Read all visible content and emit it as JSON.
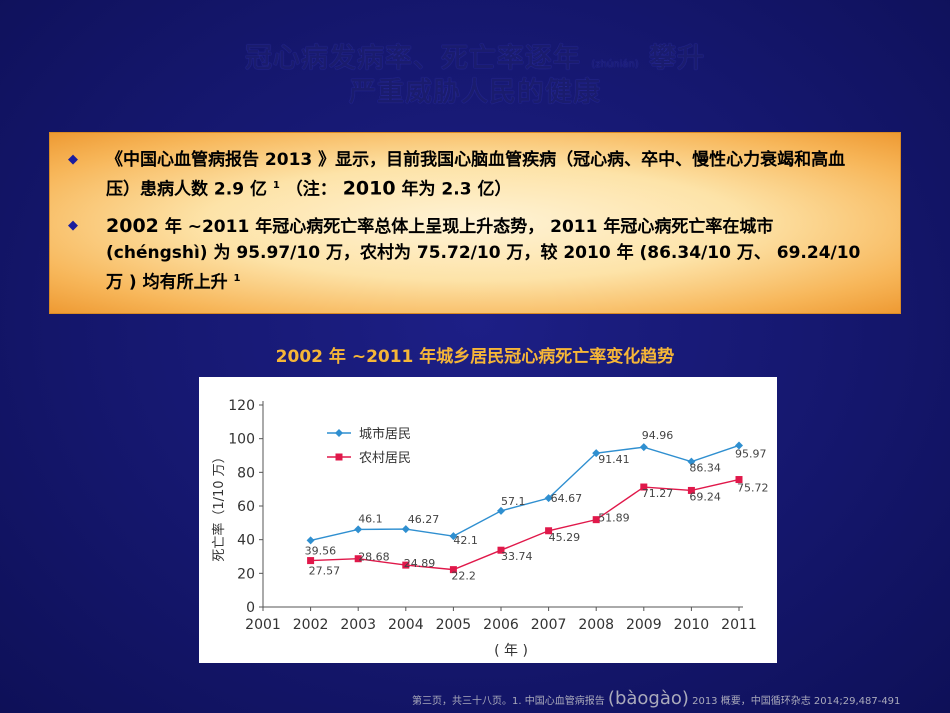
{
  "slide": {
    "title_line1_a": "冠心病发病率、死亡率逐年",
    "title_line1_pinyin": "(zhúnián)",
    "title_line1_b": "攀升",
    "title_line2": "严重威胁人民的健康",
    "bullets": [
      {
        "part1": "《中国心血管病报告 2013 》显示，目前我国心脑血管疾病（冠心病、卒中、慢性心力衰竭和高血压）患病人数 2.9 亿",
        "sup": "1",
        "part2": "（注：",
        "big": "2010",
        "part3": "年为 2.3 亿）"
      },
      {
        "big": "2002",
        "part1": "年 ~2011 年冠心病死亡率总体上呈现上升态势， 2011 年冠心病死亡率在城市 (chéngshì) 为 95.97/10 万，农村为 75.72/10 万，较 2010 年 (86.34/10 万、 69.24/10 万 ) 均有所上升",
        "sup": "1"
      }
    ],
    "chart_title": "2002 年 ~2011 年城乡居民冠心病死亡率变化趋势",
    "footer_a": "第三页，共三十八页。1. 中国心血管病报告",
    "footer_pinyin": "(bàogào)",
    "footer_b": "2013 概要，中国循环杂志 2014;29,487-491"
  },
  "colors": {
    "urban": "#2f8fd0",
    "rural": "#e0184a",
    "title": "#f6b637"
  },
  "chart_data": {
    "type": "line",
    "x": [
      2002,
      2003,
      2004,
      2005,
      2006,
      2007,
      2008,
      2009,
      2010,
      2011
    ],
    "x_ticks": [
      "2001",
      "2002",
      "2003",
      "2004",
      "2005",
      "2006",
      "2007",
      "2008",
      "2009",
      "2010",
      "2011"
    ],
    "y_ticks": [
      "0",
      "20",
      "40",
      "60",
      "80",
      "100",
      "120"
    ],
    "xlim": [
      2001,
      2011
    ],
    "ylim": [
      0,
      120
    ],
    "xlabel": "( 年 )",
    "ylabel": "死亡率（1/10 万）",
    "legend_position": "top-left",
    "series": [
      {
        "name": "城市居民",
        "values": [
          39.56,
          46.1,
          46.27,
          42.1,
          57.1,
          64.67,
          91.41,
          94.96,
          86.34,
          95.97
        ]
      },
      {
        "name": "农村居民",
        "values": [
          27.57,
          28.68,
          24.89,
          22.2,
          33.74,
          45.29,
          51.89,
          71.27,
          69.24,
          75.72
        ]
      }
    ],
    "labels": [
      [
        "39.56",
        "46.1",
        "46.27",
        "42.1",
        "57.1",
        "64.67",
        "91.41",
        "94.96",
        "86.34",
        "95.97"
      ],
      [
        "27.57",
        "28.68",
        "24.89",
        "22.2",
        "33.74",
        "45.29",
        "51.89",
        "71.27",
        "69.24",
        "75.72"
      ]
    ]
  }
}
